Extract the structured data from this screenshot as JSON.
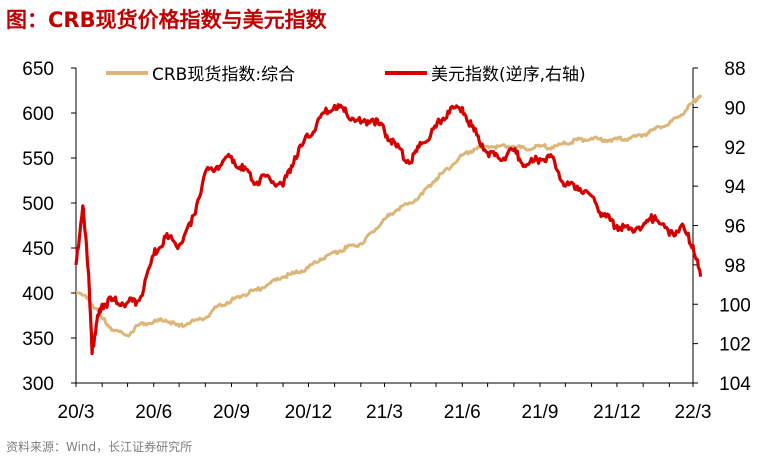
{
  "title": "图：CRB现货价格指数与美元指数",
  "source": "资料来源：Wind，长江证券研究所",
  "colors": {
    "crb": "#dcb679",
    "usd": "#d40000",
    "title": "#c00000"
  },
  "chart_data": {
    "type": "line",
    "title": "图：CRB现货价格指数与美元指数",
    "x_tick_labels": [
      "20/3",
      "20/6",
      "20/9",
      "20/12",
      "21/3",
      "21/6",
      "21/9",
      "21/12",
      "22/3"
    ],
    "x_tick_dates": [
      "2020-03",
      "2020-06",
      "2020-09",
      "2020-12",
      "2021-03",
      "2021-06",
      "2021-09",
      "2021-12",
      "2022-03"
    ],
    "y_left": {
      "min": 300,
      "max": 650,
      "ticks": [
        "300",
        "350",
        "400",
        "450",
        "500",
        "550",
        "600",
        "650"
      ]
    },
    "y_right": {
      "min": 88,
      "max": 104,
      "inverted": true,
      "ticks": [
        "88",
        "90",
        "92",
        "94",
        "96",
        "98",
        "100",
        "102",
        "104"
      ]
    },
    "legend_position": "top",
    "grid": false,
    "series": [
      {
        "name": "CRB现货指数:综合",
        "axis": "left",
        "color": "#dcb679",
        "points": [
          [
            "2020-03-01",
            400
          ],
          [
            "2020-03-15",
            395
          ],
          [
            "2020-04-01",
            372
          ],
          [
            "2020-04-15",
            358
          ],
          [
            "2020-05-01",
            353
          ],
          [
            "2020-05-15",
            365
          ],
          [
            "2020-06-01",
            368
          ],
          [
            "2020-06-15",
            370
          ],
          [
            "2020-07-01",
            363
          ],
          [
            "2020-07-15",
            368
          ],
          [
            "2020-08-01",
            372
          ],
          [
            "2020-08-15",
            385
          ],
          [
            "2020-09-01",
            392
          ],
          [
            "2020-09-15",
            398
          ],
          [
            "2020-10-01",
            403
          ],
          [
            "2020-10-15",
            410
          ],
          [
            "2020-11-01",
            418
          ],
          [
            "2020-11-15",
            422
          ],
          [
            "2020-12-01",
            428
          ],
          [
            "2020-12-15",
            438
          ],
          [
            "2021-01-01",
            445
          ],
          [
            "2021-01-15",
            450
          ],
          [
            "2021-02-01",
            455
          ],
          [
            "2021-02-15",
            468
          ],
          [
            "2021-03-01",
            482
          ],
          [
            "2021-03-15",
            492
          ],
          [
            "2021-04-01",
            500
          ],
          [
            "2021-04-15",
            510
          ],
          [
            "2021-05-01",
            527
          ],
          [
            "2021-05-15",
            538
          ],
          [
            "2021-06-01",
            553
          ],
          [
            "2021-06-15",
            560
          ],
          [
            "2021-07-01",
            563
          ],
          [
            "2021-07-15",
            563
          ],
          [
            "2021-08-01",
            563
          ],
          [
            "2021-08-15",
            560
          ],
          [
            "2021-09-01",
            563
          ],
          [
            "2021-09-15",
            562
          ],
          [
            "2021-10-01",
            566
          ],
          [
            "2021-10-15",
            570
          ],
          [
            "2021-11-01",
            572
          ],
          [
            "2021-11-15",
            570
          ],
          [
            "2021-12-01",
            571
          ],
          [
            "2021-12-15",
            572
          ],
          [
            "2022-01-01",
            576
          ],
          [
            "2022-01-15",
            582
          ],
          [
            "2022-02-01",
            588
          ],
          [
            "2022-02-15",
            598
          ],
          [
            "2022-03-01",
            612
          ],
          [
            "2022-03-10",
            620
          ]
        ]
      },
      {
        "name": "美元指数(逆序,右轴)",
        "axis": "right",
        "color": "#d40000",
        "points": [
          [
            "2020-03-01",
            98.0
          ],
          [
            "2020-03-09",
            95.0
          ],
          [
            "2020-03-16",
            98.5
          ],
          [
            "2020-03-20",
            102.5
          ],
          [
            "2020-03-25",
            101.0
          ],
          [
            "2020-04-01",
            100.0
          ],
          [
            "2020-04-15",
            99.8
          ],
          [
            "2020-05-01",
            99.9
          ],
          [
            "2020-05-15",
            99.8
          ],
          [
            "2020-06-01",
            97.5
          ],
          [
            "2020-06-15",
            96.6
          ],
          [
            "2020-07-01",
            97.0
          ],
          [
            "2020-07-15",
            96.0
          ],
          [
            "2020-08-01",
            93.3
          ],
          [
            "2020-08-15",
            93.0
          ],
          [
            "2020-09-01",
            92.5
          ],
          [
            "2020-09-15",
            93.2
          ],
          [
            "2020-10-01",
            93.8
          ],
          [
            "2020-10-15",
            93.5
          ],
          [
            "2020-11-01",
            94.0
          ],
          [
            "2020-11-15",
            92.5
          ],
          [
            "2020-12-01",
            91.5
          ],
          [
            "2020-12-15",
            90.5
          ],
          [
            "2021-01-01",
            89.9
          ],
          [
            "2021-01-15",
            90.3
          ],
          [
            "2021-02-01",
            90.8
          ],
          [
            "2021-02-15",
            90.6
          ],
          [
            "2021-03-01",
            91.2
          ],
          [
            "2021-03-15",
            92.0
          ],
          [
            "2021-04-01",
            92.8
          ],
          [
            "2021-04-15",
            91.8
          ],
          [
            "2021-05-01",
            91.0
          ],
          [
            "2021-05-15",
            90.2
          ],
          [
            "2021-06-01",
            90.0
          ],
          [
            "2021-06-15",
            91.2
          ],
          [
            "2021-07-01",
            92.3
          ],
          [
            "2021-07-15",
            92.6
          ],
          [
            "2021-08-01",
            92.2
          ],
          [
            "2021-08-15",
            93.0
          ],
          [
            "2021-09-01",
            92.6
          ],
          [
            "2021-09-15",
            92.5
          ],
          [
            "2021-10-01",
            94.0
          ],
          [
            "2021-10-15",
            94.0
          ],
          [
            "2021-11-01",
            94.5
          ],
          [
            "2021-11-15",
            95.5
          ],
          [
            "2021-12-01",
            96.0
          ],
          [
            "2021-12-15",
            96.2
          ],
          [
            "2022-01-01",
            96.0
          ],
          [
            "2022-01-15",
            95.5
          ],
          [
            "2022-02-01",
            96.5
          ],
          [
            "2022-02-15",
            96.0
          ],
          [
            "2022-03-01",
            97.0
          ],
          [
            "2022-03-10",
            98.6
          ]
        ]
      }
    ]
  }
}
